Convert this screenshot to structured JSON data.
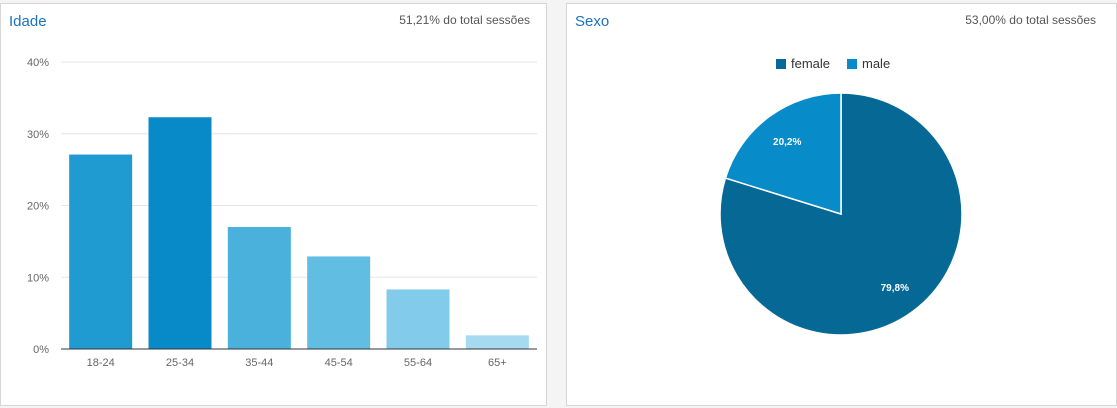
{
  "age_card": {
    "title": "Idade",
    "subtitle": "51,21% do total sessões"
  },
  "sex_card": {
    "title": "Sexo",
    "subtitle": "53,00% do total sessões"
  },
  "chart_data": [
    {
      "type": "bar",
      "title": "Idade",
      "categories": [
        "18-24",
        "25-34",
        "35-44",
        "45-54",
        "55-64",
        "65+"
      ],
      "values": [
        27.1,
        32.3,
        17.0,
        12.9,
        8.3,
        1.9
      ],
      "colors": [
        "#1f9bd1",
        "#0889c8",
        "#4ab1dc",
        "#62bde3",
        "#83cbea",
        "#a6daf1"
      ],
      "yticks": [
        "0%",
        "10%",
        "20%",
        "30%",
        "40%"
      ],
      "ylim": [
        0,
        40
      ],
      "grid": true,
      "unit": "%"
    },
    {
      "type": "pie",
      "title": "Sexo",
      "labels": [
        "female",
        "male"
      ],
      "values": [
        79.8,
        20.2
      ],
      "value_labels": [
        "79,8%",
        "20,2%"
      ],
      "colors": [
        "#066995",
        "#078bc9"
      ],
      "legend_position": "top"
    }
  ]
}
